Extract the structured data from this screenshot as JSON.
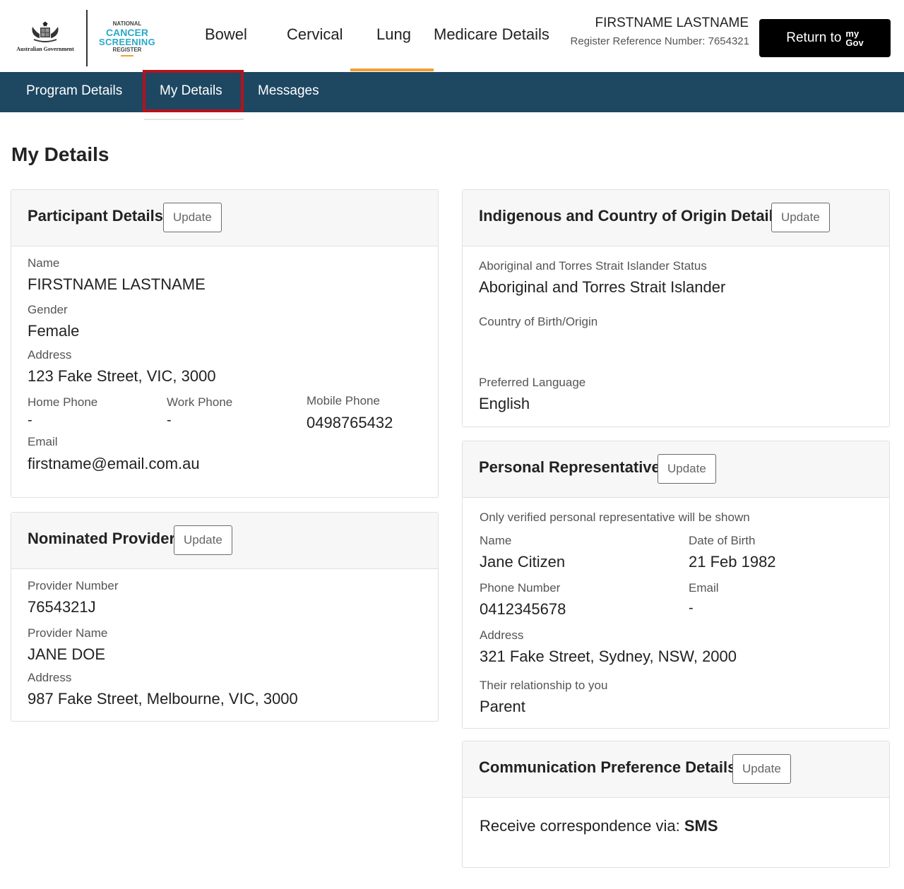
{
  "header": {
    "gov_logo_text": "Australian Government",
    "ncsr_logo": {
      "line1": "NATIONAL",
      "line2": "CANCER",
      "line3": "SCREENING",
      "line4": "REGISTER"
    },
    "nav": [
      {
        "label": "Bowel"
      },
      {
        "label": "Cervical"
      },
      {
        "label": "Lung"
      },
      {
        "label": "Medicare Details"
      }
    ],
    "active_nav": "Lung",
    "user_name": "FIRSTNAME LASTNAME",
    "register_reference": "Register Reference Number: 7654321",
    "mygov_button": {
      "label": "Return to",
      "logo_top": "my",
      "logo_bottom": "Gov"
    }
  },
  "subnav": {
    "items": [
      {
        "label": "Program Details"
      },
      {
        "label": "My Details"
      },
      {
        "label": "Messages"
      }
    ],
    "active": "My Details"
  },
  "page_title": "My Details",
  "participant": {
    "title": "Participant Details",
    "update_label": "Update",
    "name_label": "Name",
    "name_value": "FIRSTNAME LASTNAME",
    "gender_label": "Gender",
    "gender_value": "Female",
    "address_label": "Address",
    "address_value": "123 Fake Street, VIC, 3000",
    "home_phone_label": "Home Phone",
    "home_phone_value": "-",
    "work_phone_label": "Work Phone",
    "work_phone_value": "-",
    "mobile_phone_label": "Mobile Phone",
    "mobile_phone_value": "0498765432",
    "email_label": "Email",
    "email_value": "firstname@email.com.au"
  },
  "provider": {
    "title": "Nominated Provider",
    "update_label": "Update",
    "number_label": "Provider Number",
    "number_value": "7654321J",
    "name_label": "Provider Name",
    "name_value": "JANE DOE",
    "address_label": "Address",
    "address_value": "987 Fake Street, Melbourne, VIC, 3000"
  },
  "indigenous": {
    "title": "Indigenous and Country of Origin Details",
    "update_label": "Update",
    "status_label": "Aboriginal and Torres Strait Islander Status",
    "status_value": "Aboriginal and Torres Strait Islander",
    "country_label": "Country of Birth/Origin",
    "country_value": "",
    "language_label": "Preferred Language",
    "language_value": "English"
  },
  "representative": {
    "title": "Personal Representative",
    "update_label": "Update",
    "note": "Only verified personal representative will be shown",
    "name_label": "Name",
    "name_value": "Jane Citizen",
    "dob_label": "Date of Birth",
    "dob_value": "21 Feb 1982",
    "phone_label": "Phone Number",
    "phone_value": "0412345678",
    "email_label": "Email",
    "email_value": "-",
    "address_label": "Address",
    "address_value": "321 Fake Street, Sydney, NSW, 2000",
    "relationship_label": "Their relationship to you",
    "relationship_value": "Parent"
  },
  "communication": {
    "title": "Communication Preference Details",
    "update_label": "Update",
    "prefix": "Receive correspondence via:",
    "method": "SMS"
  },
  "colors": {
    "subnav_bg": "#1e4762",
    "active_highlight": "#b5121b",
    "nav_underline": "#f0a030",
    "ncsr_teal": "#2aa8c8"
  },
  "icons": [
    "australian-government-crest",
    "ncsr-logo",
    "mygov-logo"
  ]
}
